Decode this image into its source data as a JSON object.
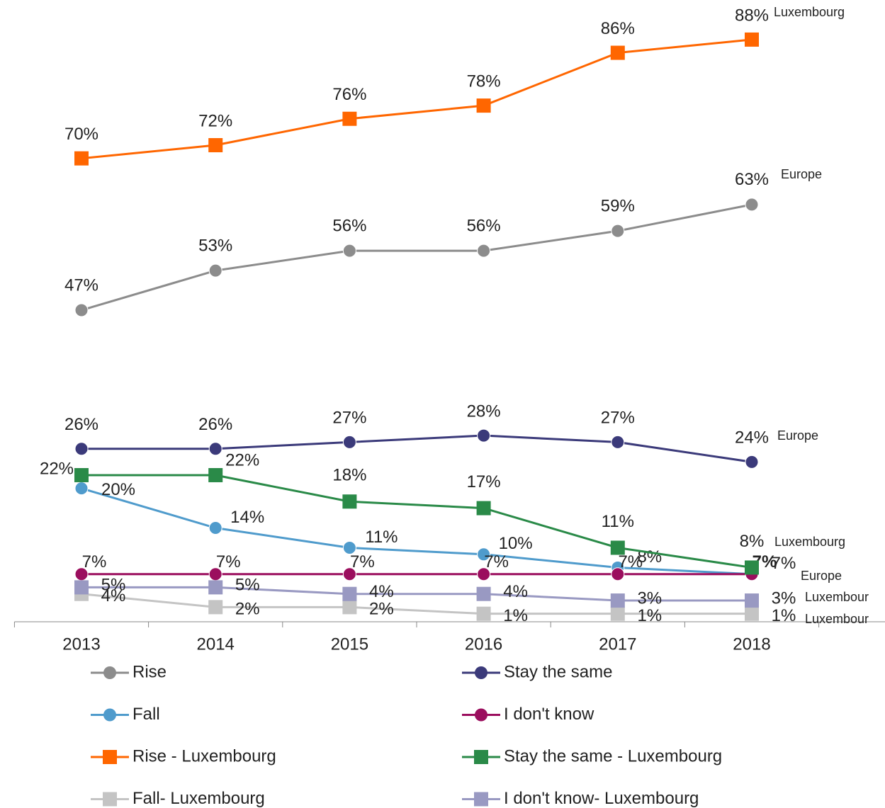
{
  "chart_data": {
    "type": "line",
    "categories": [
      "2013",
      "2014",
      "2015",
      "2016",
      "2017",
      "2018"
    ],
    "ylim": [
      0,
      94
    ],
    "series": [
      {
        "name": "Rise",
        "color": "#8c8c8c",
        "marker": "circle",
        "values": [
          47,
          53,
          56,
          56,
          59,
          63
        ],
        "value_labels": [
          "47%",
          "53%",
          "56%",
          "56%",
          "59%",
          "63%"
        ]
      },
      {
        "name": "Stay the same",
        "color": "#3b3a7a",
        "marker": "circle",
        "values": [
          26,
          26,
          27,
          28,
          27,
          24
        ],
        "value_labels": [
          "26%",
          "26%",
          "27%",
          "28%",
          "27%",
          "24%"
        ]
      },
      {
        "name": "Fall",
        "color": "#4f9bcc",
        "marker": "circle",
        "values": [
          20,
          14,
          11,
          10,
          8,
          7
        ],
        "value_labels": [
          "20%",
          "14%",
          "11%",
          "10%",
          "8%",
          "7%"
        ]
      },
      {
        "name": "I don't know",
        "color": "#9b0e5e",
        "marker": "circle",
        "values": [
          7,
          7,
          7,
          7,
          7,
          7
        ],
        "value_labels": [
          "7%",
          "7%",
          "7%",
          "7%",
          "7%",
          "7%"
        ]
      },
      {
        "name": "Rise - Luxembourg",
        "color": "#ff6600",
        "marker": "square",
        "values": [
          70,
          72,
          76,
          78,
          86,
          88
        ],
        "value_labels": [
          "70%",
          "72%",
          "76%",
          "78%",
          "86%",
          "88%"
        ]
      },
      {
        "name": "Stay the same - Luxembourg",
        "color": "#2a8a48",
        "marker": "square",
        "values": [
          22,
          22,
          18,
          17,
          11,
          8
        ],
        "value_labels": [
          "22%",
          "22%",
          "18%",
          "17%",
          "11%",
          "8%"
        ]
      },
      {
        "name": "Fall- Luxembourg",
        "color": "#c4c4c4",
        "marker": "square",
        "values": [
          4,
          2,
          2,
          1,
          1,
          1
        ],
        "value_labels": [
          "4%",
          "2%",
          "2%",
          "1%",
          "1%",
          "1%"
        ]
      },
      {
        "name": "I don't know- Luxembourg",
        "color": "#9999c2",
        "marker": "square",
        "values": [
          5,
          5,
          4,
          4,
          3,
          3
        ],
        "value_labels": [
          "5%",
          "5%",
          "4%",
          "4%",
          "3%",
          "3%"
        ]
      }
    ],
    "annotations": [
      "Luxembourg",
      "Europe",
      "Europe",
      "Luxembourg",
      "Europe",
      "Luxembour",
      "Luxembour"
    ]
  }
}
